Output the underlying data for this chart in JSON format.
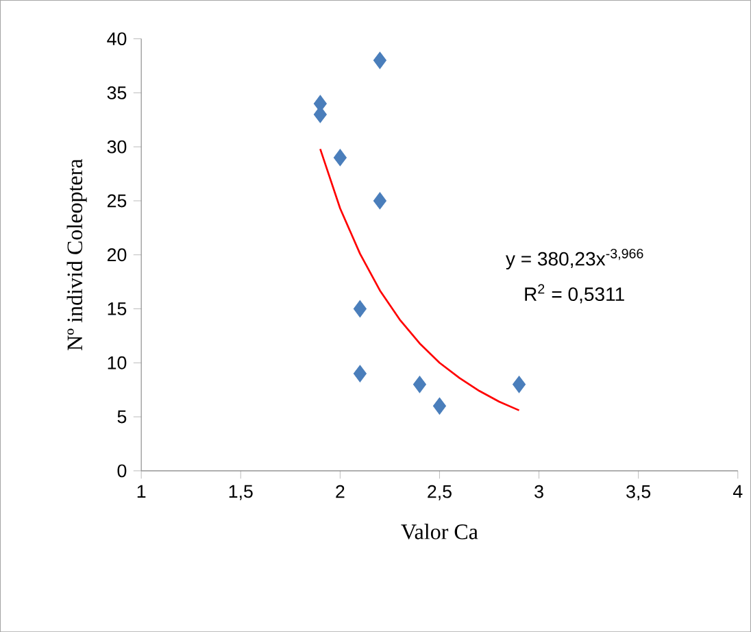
{
  "chart_data": {
    "type": "scatter",
    "xlabel": "Valor Ca",
    "ylabel": "Nº individ  Coleoptera",
    "xlim": [
      1,
      4
    ],
    "xticks": [
      1,
      {
        "value": 1.5,
        "label": "1,5"
      },
      2,
      {
        "value": 2.5,
        "label": "2,5"
      },
      3,
      {
        "value": 3.5,
        "label": "3,5"
      },
      4
    ],
    "ylim": [
      0,
      40
    ],
    "yticks": [
      0,
      5,
      10,
      15,
      20,
      25,
      30,
      35,
      40
    ],
    "marker": "diamond",
    "annotations": [
      "y = 380,23x$^{-3,966}$",
      "R$^{2}$ = 0,5311"
    ],
    "series": [
      {
        "color": "#4a7ebb",
        "x": [
          1.9,
          1.9,
          2.0,
          2.2,
          2.2,
          2.1,
          2.1,
          2.4,
          2.5,
          2.9
        ],
        "values": [
          34,
          33,
          29,
          38,
          25,
          15,
          9,
          8,
          6,
          8
        ]
      },
      {
        "type": "line",
        "marker": "none",
        "color": "#ff0000",
        "x": [
          1.9,
          2.0,
          2.1,
          2.2,
          2.3,
          2.4,
          2.5,
          2.6,
          2.7,
          2.8,
          2.9
        ],
        "values": [
          29.8,
          24.3,
          20.1,
          16.7,
          14.0,
          11.8,
          10.0,
          8.6,
          7.4,
          6.4,
          5.6
        ]
      }
    ]
  }
}
